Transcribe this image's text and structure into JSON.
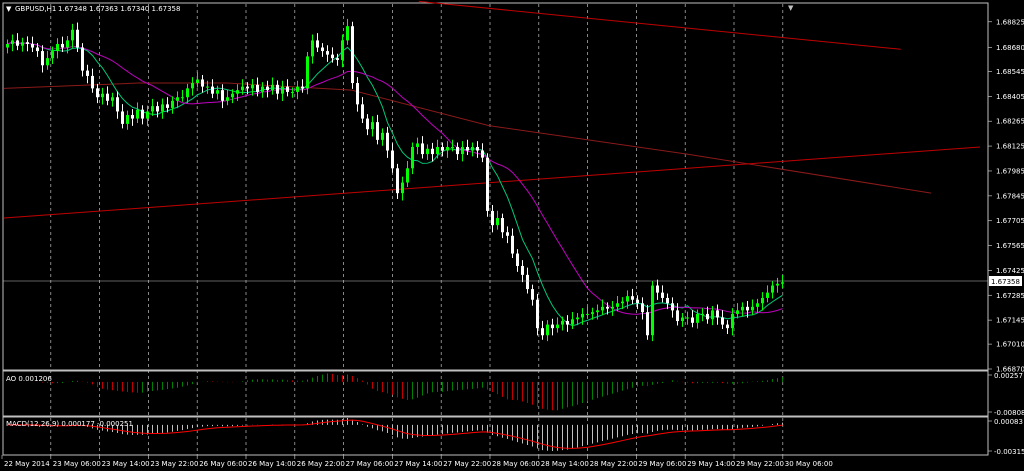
{
  "header": {
    "symbol_label": "GBPUSD,H1",
    "ohlc": "1.67348 1.67363 1.67340 1.67358",
    "scroll_marker_icon": "down-triangle-icon"
  },
  "colors": {
    "bull": "#00ff00",
    "bear": "#ffffff",
    "ma_fast": "#00c878",
    "ma_slow": "#c000c0",
    "ma_long": "#8b1a1a",
    "trendline": "#c00000",
    "ao_up": "#008000",
    "ao_down": "#c00000",
    "macd_hist": "#c0c0c0",
    "macd_signal": "#ff0000",
    "grid": "#c0c0c0",
    "background": "#000000"
  },
  "chart_data": [
    {
      "type": "candlestick",
      "title": "GBPUSD,H1",
      "ylim": [
        1.6687,
        1.68925
      ],
      "y_ticks": [
        "1.68825",
        "1.68680",
        "1.68545",
        "1.68405",
        "1.68265",
        "1.68125",
        "1.67985",
        "1.67845",
        "1.67705",
        "1.67565",
        "1.67425",
        "1.67285",
        "1.67145",
        "1.67010",
        "1.66870"
      ],
      "current_price": "1.67358",
      "x_ticks": [
        "22 May 2014",
        "23 May 06:00",
        "23 May 14:00",
        "23 May 22:00",
        "26 May 06:00",
        "26 May 14:00",
        "26 May 22:00",
        "27 May 06:00",
        "27 May 14:00",
        "27 May 22:00",
        "28 May 06:00",
        "28 May 14:00",
        "28 May 22:00",
        "29 May 06:00",
        "29 May 14:00",
        "29 May 22:00",
        "30 May 06:00"
      ],
      "closes": [
        1.687,
        1.6872,
        1.6869,
        1.6871,
        1.687,
        1.6868,
        1.6866,
        1.6858,
        1.6862,
        1.6866,
        1.687,
        1.6868,
        1.6872,
        1.6878,
        1.6868,
        1.6855,
        1.6852,
        1.6845,
        1.684,
        1.6842,
        1.6838,
        1.684,
        1.6832,
        1.6825,
        1.683,
        1.6828,
        1.6833,
        1.6828,
        1.6832,
        1.6835,
        1.6832,
        1.6836,
        1.6834,
        1.6838,
        1.684,
        1.684,
        1.6845,
        1.6848,
        1.685,
        1.6846,
        1.6846,
        1.6842,
        1.6844,
        1.6838,
        1.684,
        1.6842,
        1.6844,
        1.6846,
        1.6845,
        1.6847,
        1.6843,
        1.6846,
        1.6844,
        1.6847,
        1.6842,
        1.6846,
        1.6843,
        1.6843,
        1.6846,
        1.6845,
        1.6863,
        1.6872,
        1.6868,
        1.6866,
        1.6864,
        1.6862,
        1.6861,
        1.6872,
        1.688,
        1.6848,
        1.6836,
        1.6828,
        1.6822,
        1.6826,
        1.6816,
        1.682,
        1.681,
        1.68,
        1.6786,
        1.6792,
        1.68,
        1.6812,
        1.6814,
        1.6808,
        1.6811,
        1.6808,
        1.6812,
        1.681,
        1.6812,
        1.6812,
        1.6808,
        1.6812,
        1.681,
        1.6812,
        1.681,
        1.6806,
        1.6776,
        1.6768,
        1.6772,
        1.6764,
        1.6762,
        1.6752,
        1.6745,
        1.674,
        1.6732,
        1.6726,
        1.671,
        1.6706,
        1.6712,
        1.671,
        1.6712,
        1.6714,
        1.6712,
        1.6715,
        1.6716,
        1.6718,
        1.6718,
        1.6719,
        1.672,
        1.6722,
        1.6721,
        1.6722,
        1.6724,
        1.6725,
        1.6728,
        1.6726,
        1.6724,
        1.6719,
        1.6706,
        1.6734,
        1.673,
        1.6727,
        1.6724,
        1.672,
        1.6714,
        1.6716,
        1.6716,
        1.6713,
        1.6718,
        1.6718,
        1.6715,
        1.672,
        1.6716,
        1.6712,
        1.671,
        1.6718,
        1.672,
        1.6722,
        1.672,
        1.6722,
        1.6724,
        1.6727,
        1.673,
        1.6734,
        1.6735,
        1.67358
      ],
      "lines": [
        {
          "color": "#8b1a1a",
          "points": [
            [
              0,
              1.6845
            ],
            [
              4.4,
              1.6848
            ],
            [
              7.3,
              1.6848
            ],
            [
              11.4,
              1.6844
            ],
            [
              15.9,
              1.6824
            ],
            [
              22.4,
              1.6808
            ],
            [
              30.4,
              1.6786
            ]
          ]
        },
        {
          "color": "#c00000",
          "points": [
            [
              0,
              1.6772
            ],
            [
              32,
              1.6812
            ]
          ]
        },
        {
          "color": "#c00000",
          "points": [
            [
              13.6,
              1.6894
            ],
            [
              29.4,
              1.6867
            ]
          ]
        }
      ]
    },
    {
      "type": "bar",
      "title": "AO 0.001206",
      "ylim": [
        -0.00808,
        0.00257
      ],
      "y_ticks": [
        "0.00257",
        "-0.00808"
      ]
    },
    {
      "type": "bar",
      "title": "MACD(12,26,9) 0.000177 -0.000251",
      "ylim": [
        -0.00315,
        0.00083
      ],
      "y_ticks": [
        "0.00083",
        "-0.00315"
      ]
    }
  ]
}
